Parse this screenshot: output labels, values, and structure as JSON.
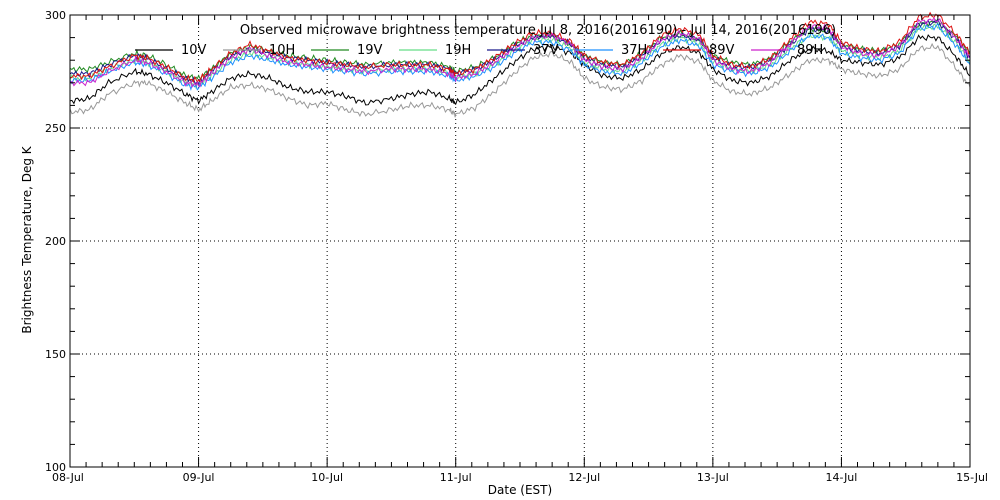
{
  "chart_data": {
    "type": "line",
    "title": "Observed microwave brightness temperature Jul 8, 2016(2016190) - Jul 14, 2016(2016196)",
    "xlabel": "Date (EST)",
    "ylabel": "Brightness Temperature, Deg K",
    "ylim": [
      100,
      300
    ],
    "y_ticks": [
      100,
      150,
      200,
      250,
      300
    ],
    "x_ticks": [
      "08-Jul",
      "09-Jul",
      "10-Jul",
      "11-Jul",
      "12-Jul",
      "13-Jul",
      "14-Jul",
      "15-Jul"
    ],
    "x_range_days": [
      0,
      7
    ],
    "grid": true,
    "legend_position": "top",
    "x": [
      0.0,
      0.15,
      0.3,
      0.5,
      0.6,
      0.75,
      0.9,
      1.0,
      1.1,
      1.25,
      1.4,
      1.55,
      1.7,
      1.85,
      2.0,
      2.15,
      2.3,
      2.5,
      2.65,
      2.8,
      2.95,
      3.0,
      3.15,
      3.3,
      3.45,
      3.6,
      3.75,
      3.9,
      4.0,
      4.15,
      4.3,
      4.45,
      4.6,
      4.75,
      4.9,
      5.0,
      5.15,
      5.3,
      5.45,
      5.6,
      5.75,
      5.9,
      6.0,
      6.15,
      6.3,
      6.45,
      6.6,
      6.75,
      6.9,
      7.0
    ],
    "series": [
      {
        "name": "10V",
        "color": "#000000",
        "values": [
          262,
          263,
          270,
          275,
          274,
          270,
          265,
          262,
          266,
          272,
          274,
          272,
          268,
          266,
          266,
          264,
          261,
          263,
          265,
          266,
          263,
          261,
          265,
          272,
          279,
          285,
          286,
          283,
          278,
          273,
          272,
          276,
          283,
          286,
          283,
          276,
          271,
          270,
          273,
          280,
          285,
          284,
          280,
          279,
          278,
          281,
          290,
          290,
          281,
          273
        ]
      },
      {
        "name": "10H",
        "color": "#999999",
        "values": [
          257,
          258,
          265,
          270,
          270,
          266,
          261,
          258,
          262,
          268,
          269,
          267,
          263,
          260,
          261,
          258,
          256,
          258,
          260,
          260,
          258,
          256,
          259,
          266,
          274,
          281,
          283,
          279,
          272,
          268,
          267,
          271,
          278,
          282,
          279,
          271,
          266,
          265,
          268,
          274,
          280,
          280,
          276,
          274,
          273,
          276,
          285,
          286,
          276,
          268
        ]
      },
      {
        "name": "19V",
        "color": "#228B22",
        "values": [
          276,
          276,
          279,
          283,
          282,
          278,
          273,
          272,
          276,
          283,
          286,
          284,
          282,
          281,
          280,
          279,
          278,
          279,
          279,
          279,
          277,
          275,
          277,
          281,
          287,
          291,
          291,
          287,
          282,
          279,
          278,
          283,
          290,
          292,
          289,
          282,
          279,
          278,
          281,
          288,
          294,
          293,
          287,
          285,
          284,
          287,
          296,
          297,
          290,
          283
        ]
      },
      {
        "name": "19H",
        "color": "#66dd88",
        "values": [
          272,
          272,
          276,
          280,
          279,
          275,
          270,
          269,
          273,
          280,
          283,
          281,
          279,
          278,
          277,
          276,
          275,
          276,
          276,
          276,
          274,
          272,
          274,
          278,
          284,
          289,
          289,
          285,
          279,
          276,
          275,
          280,
          287,
          290,
          287,
          279,
          276,
          275,
          278,
          285,
          291,
          290,
          284,
          282,
          281,
          284,
          294,
          295,
          287,
          279
        ]
      },
      {
        "name": "37V",
        "color": "#1a1a8c",
        "values": [
          274,
          274,
          278,
          282,
          281,
          276,
          272,
          270,
          275,
          282,
          285,
          283,
          281,
          280,
          279,
          278,
          277,
          278,
          278,
          278,
          276,
          274,
          276,
          280,
          286,
          290,
          291,
          287,
          281,
          278,
          277,
          282,
          289,
          291,
          289,
          281,
          277,
          277,
          280,
          287,
          294,
          293,
          286,
          284,
          283,
          286,
          296,
          297,
          289,
          281
        ]
      },
      {
        "name": "37H",
        "color": "#1e90ff",
        "values": [
          271,
          271,
          275,
          279,
          278,
          274,
          269,
          268,
          272,
          279,
          282,
          280,
          278,
          277,
          276,
          275,
          274,
          275,
          275,
          275,
          273,
          271,
          273,
          277,
          283,
          288,
          288,
          284,
          278,
          275,
          274,
          279,
          286,
          289,
          286,
          278,
          275,
          274,
          277,
          284,
          291,
          290,
          283,
          281,
          280,
          283,
          294,
          295,
          286,
          278
        ]
      },
      {
        "name": "89V",
        "color": "#dd1111",
        "values": [
          273,
          273,
          277,
          282,
          281,
          277,
          272,
          271,
          276,
          283,
          287,
          284,
          281,
          280,
          279,
          278,
          277,
          278,
          278,
          278,
          276,
          274,
          276,
          281,
          287,
          292,
          292,
          288,
          282,
          279,
          278,
          283,
          291,
          294,
          291,
          282,
          278,
          277,
          281,
          289,
          297,
          296,
          288,
          285,
          284,
          288,
          299,
          300,
          291,
          283
        ]
      },
      {
        "name": "89H",
        "color": "#cc22cc",
        "values": [
          270,
          270,
          275,
          280,
          279,
          275,
          270,
          269,
          274,
          281,
          285,
          282,
          279,
          278,
          277,
          276,
          275,
          276,
          276,
          276,
          274,
          272,
          274,
          279,
          285,
          290,
          291,
          287,
          280,
          277,
          276,
          281,
          289,
          292,
          289,
          280,
          276,
          275,
          279,
          287,
          295,
          294,
          286,
          283,
          282,
          286,
          297,
          298,
          289,
          281
        ]
      }
    ]
  }
}
